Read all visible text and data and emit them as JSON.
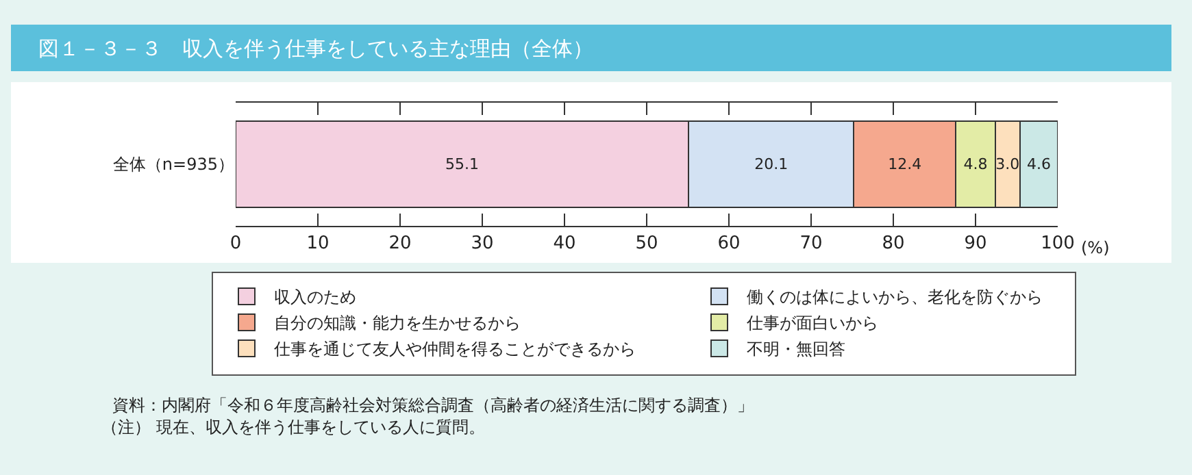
{
  "chart_data": {
    "type": "bar",
    "orientation": "horizontal",
    "stacked": true,
    "title": "図１－３－３　収入を伴う仕事をしている主な理由（全体）",
    "xlabel": "(%)",
    "categories": [
      "全体（n=935）"
    ],
    "series": [
      {
        "name": "収入のため",
        "color": "#f4d0e0",
        "values": [
          55.1
        ],
        "value_labels": [
          "55.1"
        ]
      },
      {
        "name": "働くのは体によいから、老化を防ぐから",
        "color": "#d3e2f3",
        "values": [
          20.1
        ],
        "value_labels": [
          "20.1"
        ]
      },
      {
        "name": "自分の知識・能力を生かせるから",
        "color": "#f5a88e",
        "values": [
          12.4
        ],
        "value_labels": [
          "12.4"
        ]
      },
      {
        "name": "仕事が面白いから",
        "color": "#e3eca6",
        "values": [
          4.8
        ],
        "value_labels": [
          "4.8"
        ]
      },
      {
        "name": "仕事を通じて友人や仲間を得ることができるから",
        "color": "#fde0bd",
        "values": [
          3.0
        ],
        "value_labels": [
          "3.0"
        ]
      },
      {
        "name": "不明・無回答",
        "color": "#cbe8e6",
        "values": [
          4.6
        ],
        "value_labels": [
          "4.6"
        ]
      }
    ],
    "xlim": [
      0,
      100
    ],
    "xticks": [
      0,
      10,
      20,
      30,
      40,
      50,
      60,
      70,
      80,
      90,
      100
    ],
    "legend": "bottom",
    "annotations": [
      "資料：内閣府「令和６年度高齢社会対策総合調査（高齢者の経済生活に関する調査）」",
      "（注） 現在、収入を伴う仕事をしている人に質問。"
    ]
  }
}
